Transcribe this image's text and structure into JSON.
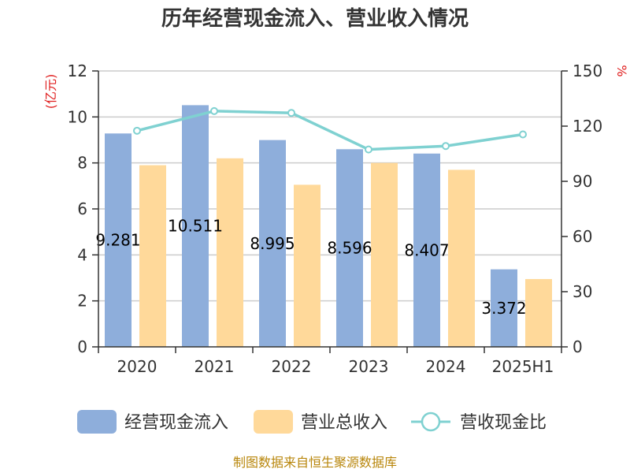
{
  "chart_data": {
    "type": "bar",
    "title": "历年经营现金流入、营业收入情况",
    "left_axis": {
      "unit_label": "(亿元)",
      "ylim": [
        0,
        12
      ],
      "ticks": [
        0,
        2,
        4,
        6,
        8,
        10,
        12
      ]
    },
    "right_axis": {
      "unit_label": "%",
      "ylim": [
        0,
        150
      ],
      "ticks": [
        0,
        30,
        60,
        90,
        120,
        150
      ]
    },
    "categories": [
      "2020",
      "2021",
      "2022",
      "2023",
      "2024",
      "2025H1"
    ],
    "series": [
      {
        "name": "经营现金流入",
        "kind": "bar",
        "axis": "left",
        "color": "#8eaedb",
        "values": [
          9.281,
          10.511,
          8.995,
          8.596,
          8.407,
          3.372
        ],
        "data_labels": [
          "9.281",
          "10.511",
          "8.995",
          "8.596",
          "8.407",
          "3.372"
        ]
      },
      {
        "name": "营业总收入",
        "kind": "bar",
        "axis": "left",
        "color": "#ffd99a",
        "values": [
          7.9,
          8.2,
          7.05,
          8.0,
          7.7,
          2.95
        ]
      },
      {
        "name": "营收现金比",
        "kind": "line",
        "axis": "right",
        "color": "#7fd1d1",
        "values": [
          117.5,
          128.2,
          127.2,
          107.3,
          109.2,
          115.5
        ]
      }
    ],
    "grid": true,
    "legend_position": "bottom"
  },
  "source": "制图数据来自恒生聚源数据库"
}
